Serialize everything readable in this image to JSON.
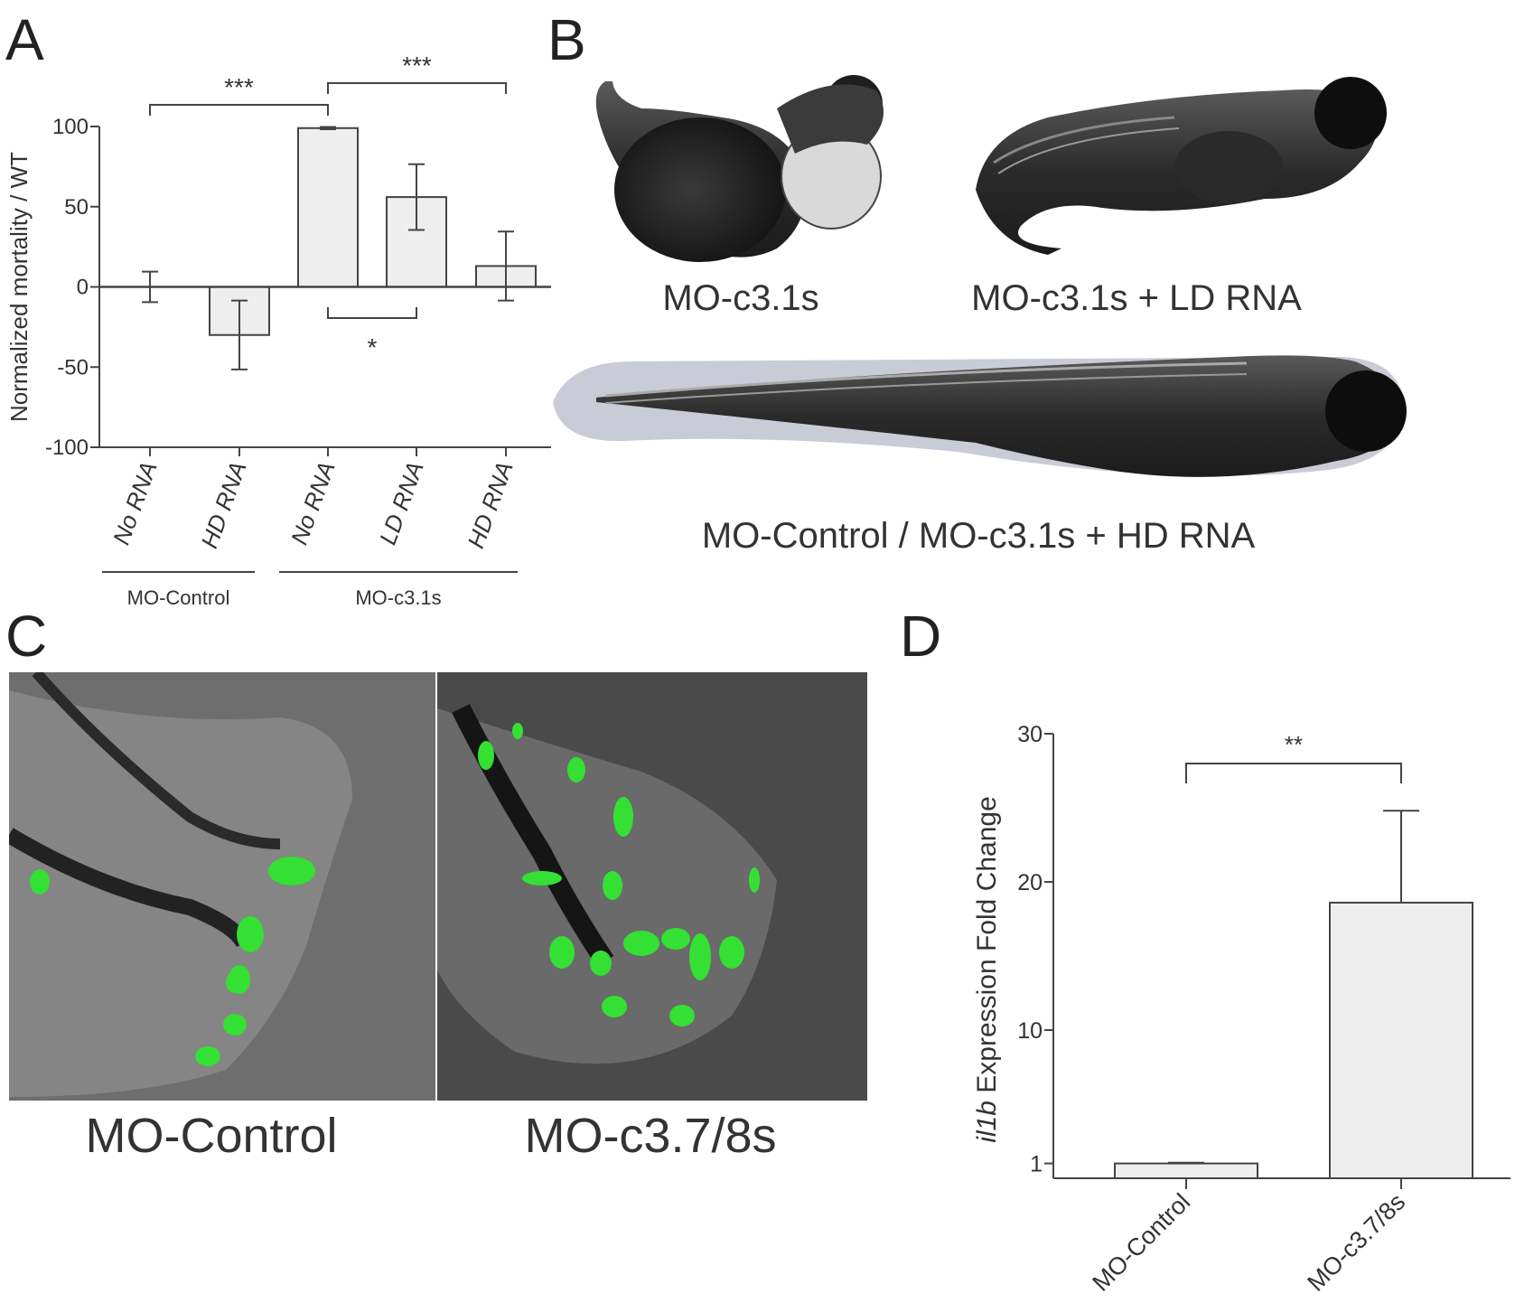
{
  "panels": {
    "a": {
      "label": "A"
    },
    "b": {
      "label": "B"
    },
    "c": {
      "label": "C"
    },
    "d": {
      "label": "D"
    }
  },
  "panel_b": {
    "captions": [
      "MO-c3.1s",
      "MO-c3.1s + LD RNA",
      "MO-Control / MO-c3.1s + HD RNA"
    ]
  },
  "panel_c": {
    "captions": [
      "MO-Control",
      "MO-c3.7/8s"
    ]
  },
  "chart_data": [
    {
      "type": "bar",
      "panel": "A",
      "ylabel": "Normalized mortality / WT",
      "ylim": [
        -100,
        100
      ],
      "yticks": [
        100,
        50,
        0,
        -50,
        -100
      ],
      "categories": [
        "No RNA",
        "HD RNA",
        "No RNA",
        "LD RNA",
        "HD RNA"
      ],
      "groups": [
        {
          "label": "MO-Control",
          "categories": [
            0,
            1
          ]
        },
        {
          "label": "MO-c3.1s",
          "categories": [
            2,
            3,
            4
          ]
        }
      ],
      "values": [
        0,
        -30,
        99,
        56,
        13
      ],
      "errors": [
        9.5,
        21.5,
        0.7,
        20.5,
        21.5
      ],
      "significance": [
        {
          "from": 0,
          "to": 2,
          "label": "***"
        },
        {
          "from": 2,
          "to": 4,
          "label": "***"
        },
        {
          "from": 2,
          "to": 3,
          "label": "*"
        }
      ],
      "bar_color": "#eeeeee",
      "grid": false
    },
    {
      "type": "bar",
      "panel": "D",
      "ylabel": "il1b Expression Fold Change",
      "ylabel_italic_part": "il1b",
      "ylabel_rest": " Expression Fold Change",
      "yticks": [
        1,
        10,
        20,
        30
      ],
      "ylim": [
        0,
        30
      ],
      "categories": [
        "MO-Control",
        "MO-c3.7/8s"
      ],
      "values": [
        1,
        18.6
      ],
      "errors": [
        0.05,
        6.2
      ],
      "significance": [
        {
          "from": 0,
          "to": 1,
          "label": "**"
        }
      ],
      "bar_color": "#eeeeee",
      "grid": false
    }
  ]
}
